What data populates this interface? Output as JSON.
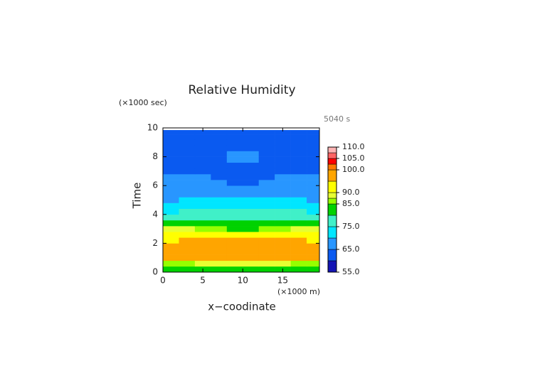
{
  "chart_data": {
    "type": "contour",
    "title": "Relative Humidity",
    "y_unit_label": "(×1000 sec)",
    "x_unit_label": "(×1000 m)",
    "time_annotation": "5040 s",
    "x_label": "x−coodinate",
    "y_label": "Time",
    "xlim": [
      0,
      19.6
    ],
    "ylim": [
      0,
      10
    ],
    "xticks": [
      0,
      5,
      10,
      15
    ],
    "yticks": [
      0,
      2,
      4,
      6,
      8,
      10
    ],
    "x": [
      1,
      3,
      5,
      7,
      9,
      11,
      13,
      15,
      17,
      19
    ],
    "y": [
      0.2,
      0.6,
      1.0,
      1.4,
      1.8,
      2.2,
      2.6,
      3.0,
      3.4,
      3.8,
      4.2,
      4.6,
      5.0,
      5.4,
      5.8,
      6.2,
      6.6,
      7.0,
      7.4,
      7.8,
      8.2,
      8.6,
      9.0,
      9.4,
      9.7
    ],
    "z": [
      [
        82,
        82,
        82,
        82,
        83,
        83,
        82,
        82,
        82,
        82
      ],
      [
        87,
        87,
        88,
        88,
        89,
        89,
        88,
        88,
        87,
        87
      ],
      [
        96,
        96,
        96,
        96,
        96,
        96,
        96,
        96,
        96,
        96
      ],
      [
        97,
        97,
        97,
        97,
        97,
        97,
        97,
        97,
        97,
        97
      ],
      [
        97,
        97,
        97,
        97,
        97,
        97,
        97,
        97,
        97,
        97
      ],
      [
        92,
        96,
        97,
        97,
        97,
        97,
        97,
        97,
        96,
        92
      ],
      [
        91,
        91,
        92,
        93,
        93,
        93,
        93,
        92,
        91,
        91
      ],
      [
        88,
        88,
        87,
        86,
        84,
        84,
        86,
        87,
        88,
        88
      ],
      [
        84,
        84,
        83,
        83,
        82,
        82,
        83,
        83,
        84,
        84
      ],
      [
        79,
        78,
        78,
        77,
        77,
        77,
        77,
        78,
        78,
        79
      ],
      [
        74,
        75,
        76,
        77,
        77,
        77,
        77,
        76,
        75,
        74
      ],
      [
        72,
        72,
        73,
        73,
        74,
        74,
        73,
        73,
        72,
        72
      ],
      [
        69,
        70,
        71,
        71,
        72,
        72,
        71,
        71,
        70,
        69
      ],
      [
        67,
        67,
        67,
        67,
        67,
        67,
        67,
        67,
        67,
        67
      ],
      [
        67,
        67,
        67,
        67,
        67,
        67,
        67,
        67,
        67,
        67
      ],
      [
        67,
        67,
        67,
        67,
        64,
        64,
        67,
        67,
        67,
        67
      ],
      [
        67,
        67,
        67,
        64,
        63,
        63,
        64,
        67,
        67,
        67
      ],
      [
        62,
        62,
        62,
        62,
        62,
        62,
        62,
        62,
        62,
        62
      ],
      [
        62,
        62,
        62,
        62,
        62,
        62,
        62,
        62,
        62,
        62
      ],
      [
        62,
        62,
        62,
        62,
        66,
        66,
        62,
        62,
        62,
        62
      ],
      [
        62,
        62,
        62,
        62,
        66,
        66,
        62,
        62,
        62,
        62
      ],
      [
        62,
        62,
        62,
        62,
        62,
        62,
        62,
        62,
        62,
        62
      ],
      [
        62,
        62,
        62,
        62,
        62,
        62,
        62,
        62,
        62,
        62
      ],
      [
        62,
        62,
        62,
        62,
        62,
        62,
        62,
        62,
        62,
        62
      ],
      [
        62,
        62,
        62,
        62,
        62,
        62,
        62,
        62,
        62,
        62
      ]
    ],
    "levels": [
      55,
      60,
      65,
      70,
      75,
      80,
      85,
      87.5,
      90,
      95,
      100,
      102.5,
      105,
      107.5,
      110
    ],
    "colors": [
      "#1414b4",
      "#0a5af0",
      "#2896ff",
      "#00e6ff",
      "#40f0c8",
      "#00d200",
      "#96ff00",
      "#e6ff32",
      "#ffff00",
      "#ffa500",
      "#ff7800",
      "#ff0000",
      "#ff6464",
      "#ffb4b4"
    ],
    "colorbar_ticks": [
      {
        "value": 55,
        "label": "55.0"
      },
      {
        "value": 65,
        "label": "65.0"
      },
      {
        "value": 75,
        "label": "75.0"
      },
      {
        "value": 85,
        "label": "85.0"
      },
      {
        "value": 90,
        "label": "90.0"
      },
      {
        "value": 100,
        "label": "100.0"
      },
      {
        "value": 105,
        "label": "105.0"
      },
      {
        "value": 110,
        "label": "110.0"
      }
    ]
  }
}
